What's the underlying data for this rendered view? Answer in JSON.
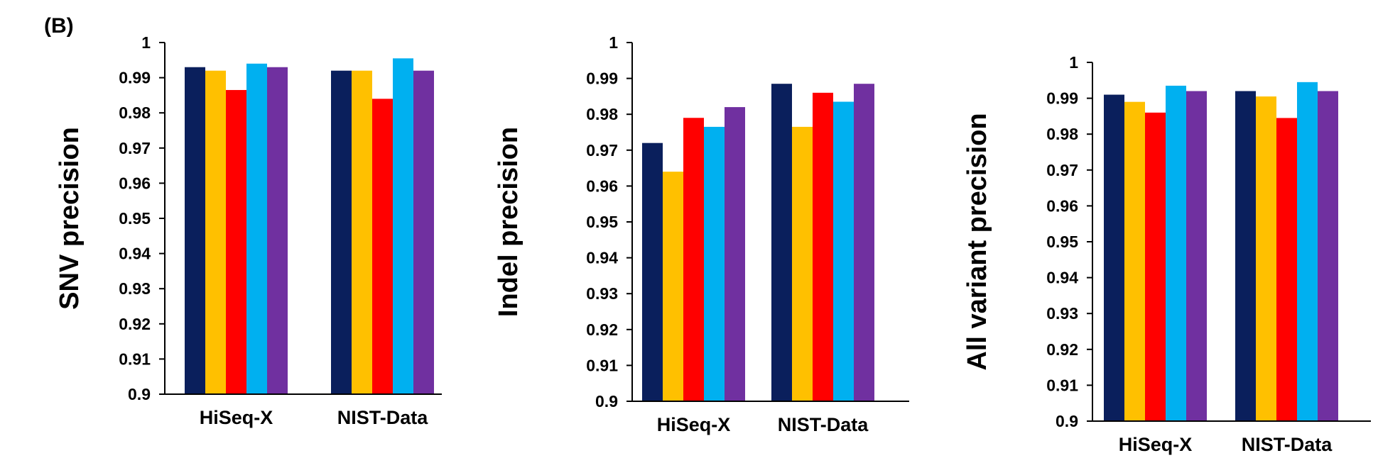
{
  "panel_label": "(B)",
  "colors": [
    "#0a1f5c",
    "#ffc000",
    "#ff0000",
    "#00b0f0",
    "#7030a0"
  ],
  "chart_data": [
    {
      "type": "bar",
      "ylabel": "SNV precision",
      "ylim": [
        0.9,
        1.0
      ],
      "yticks": [
        "0.9",
        "0.91",
        "0.92",
        "0.93",
        "0.94",
        "0.95",
        "0.96",
        "0.97",
        "0.98",
        "0.99",
        "1"
      ],
      "categories": [
        "HiSeq-X",
        "NIST-Data"
      ],
      "series": [
        {
          "values": [
            0.993,
            0.992
          ]
        },
        {
          "values": [
            0.992,
            0.992
          ]
        },
        {
          "values": [
            0.9865,
            0.984
          ]
        },
        {
          "values": [
            0.994,
            0.9955
          ]
        },
        {
          "values": [
            0.993,
            0.992
          ]
        }
      ]
    },
    {
      "type": "bar",
      "ylabel": "Indel precision",
      "ylim": [
        0.9,
        1.0
      ],
      "yticks": [
        "0.9",
        "0.91",
        "0.92",
        "0.93",
        "0.94",
        "0.95",
        "0.96",
        "0.97",
        "0.98",
        "0.99",
        "1"
      ],
      "categories": [
        "HiSeq-X",
        "NIST-Data"
      ],
      "series": [
        {
          "values": [
            0.972,
            0.9885
          ]
        },
        {
          "values": [
            0.964,
            0.9765
          ]
        },
        {
          "values": [
            0.979,
            0.986
          ]
        },
        {
          "values": [
            0.9765,
            0.9835
          ]
        },
        {
          "values": [
            0.982,
            0.9885
          ]
        }
      ]
    },
    {
      "type": "bar",
      "ylabel": "All variant precision",
      "ylim": [
        0.9,
        1.0
      ],
      "yticks": [
        "0.9",
        "0.91",
        "0.92",
        "0.93",
        "0.94",
        "0.95",
        "0.96",
        "0.97",
        "0.98",
        "0.99",
        "1"
      ],
      "categories": [
        "HiSeq-X",
        "NIST-Data"
      ],
      "series": [
        {
          "values": [
            0.991,
            0.992
          ]
        },
        {
          "values": [
            0.989,
            0.9905
          ]
        },
        {
          "values": [
            0.986,
            0.9845
          ]
        },
        {
          "values": [
            0.9935,
            0.9945
          ]
        },
        {
          "values": [
            0.992,
            0.992
          ]
        }
      ]
    }
  ]
}
